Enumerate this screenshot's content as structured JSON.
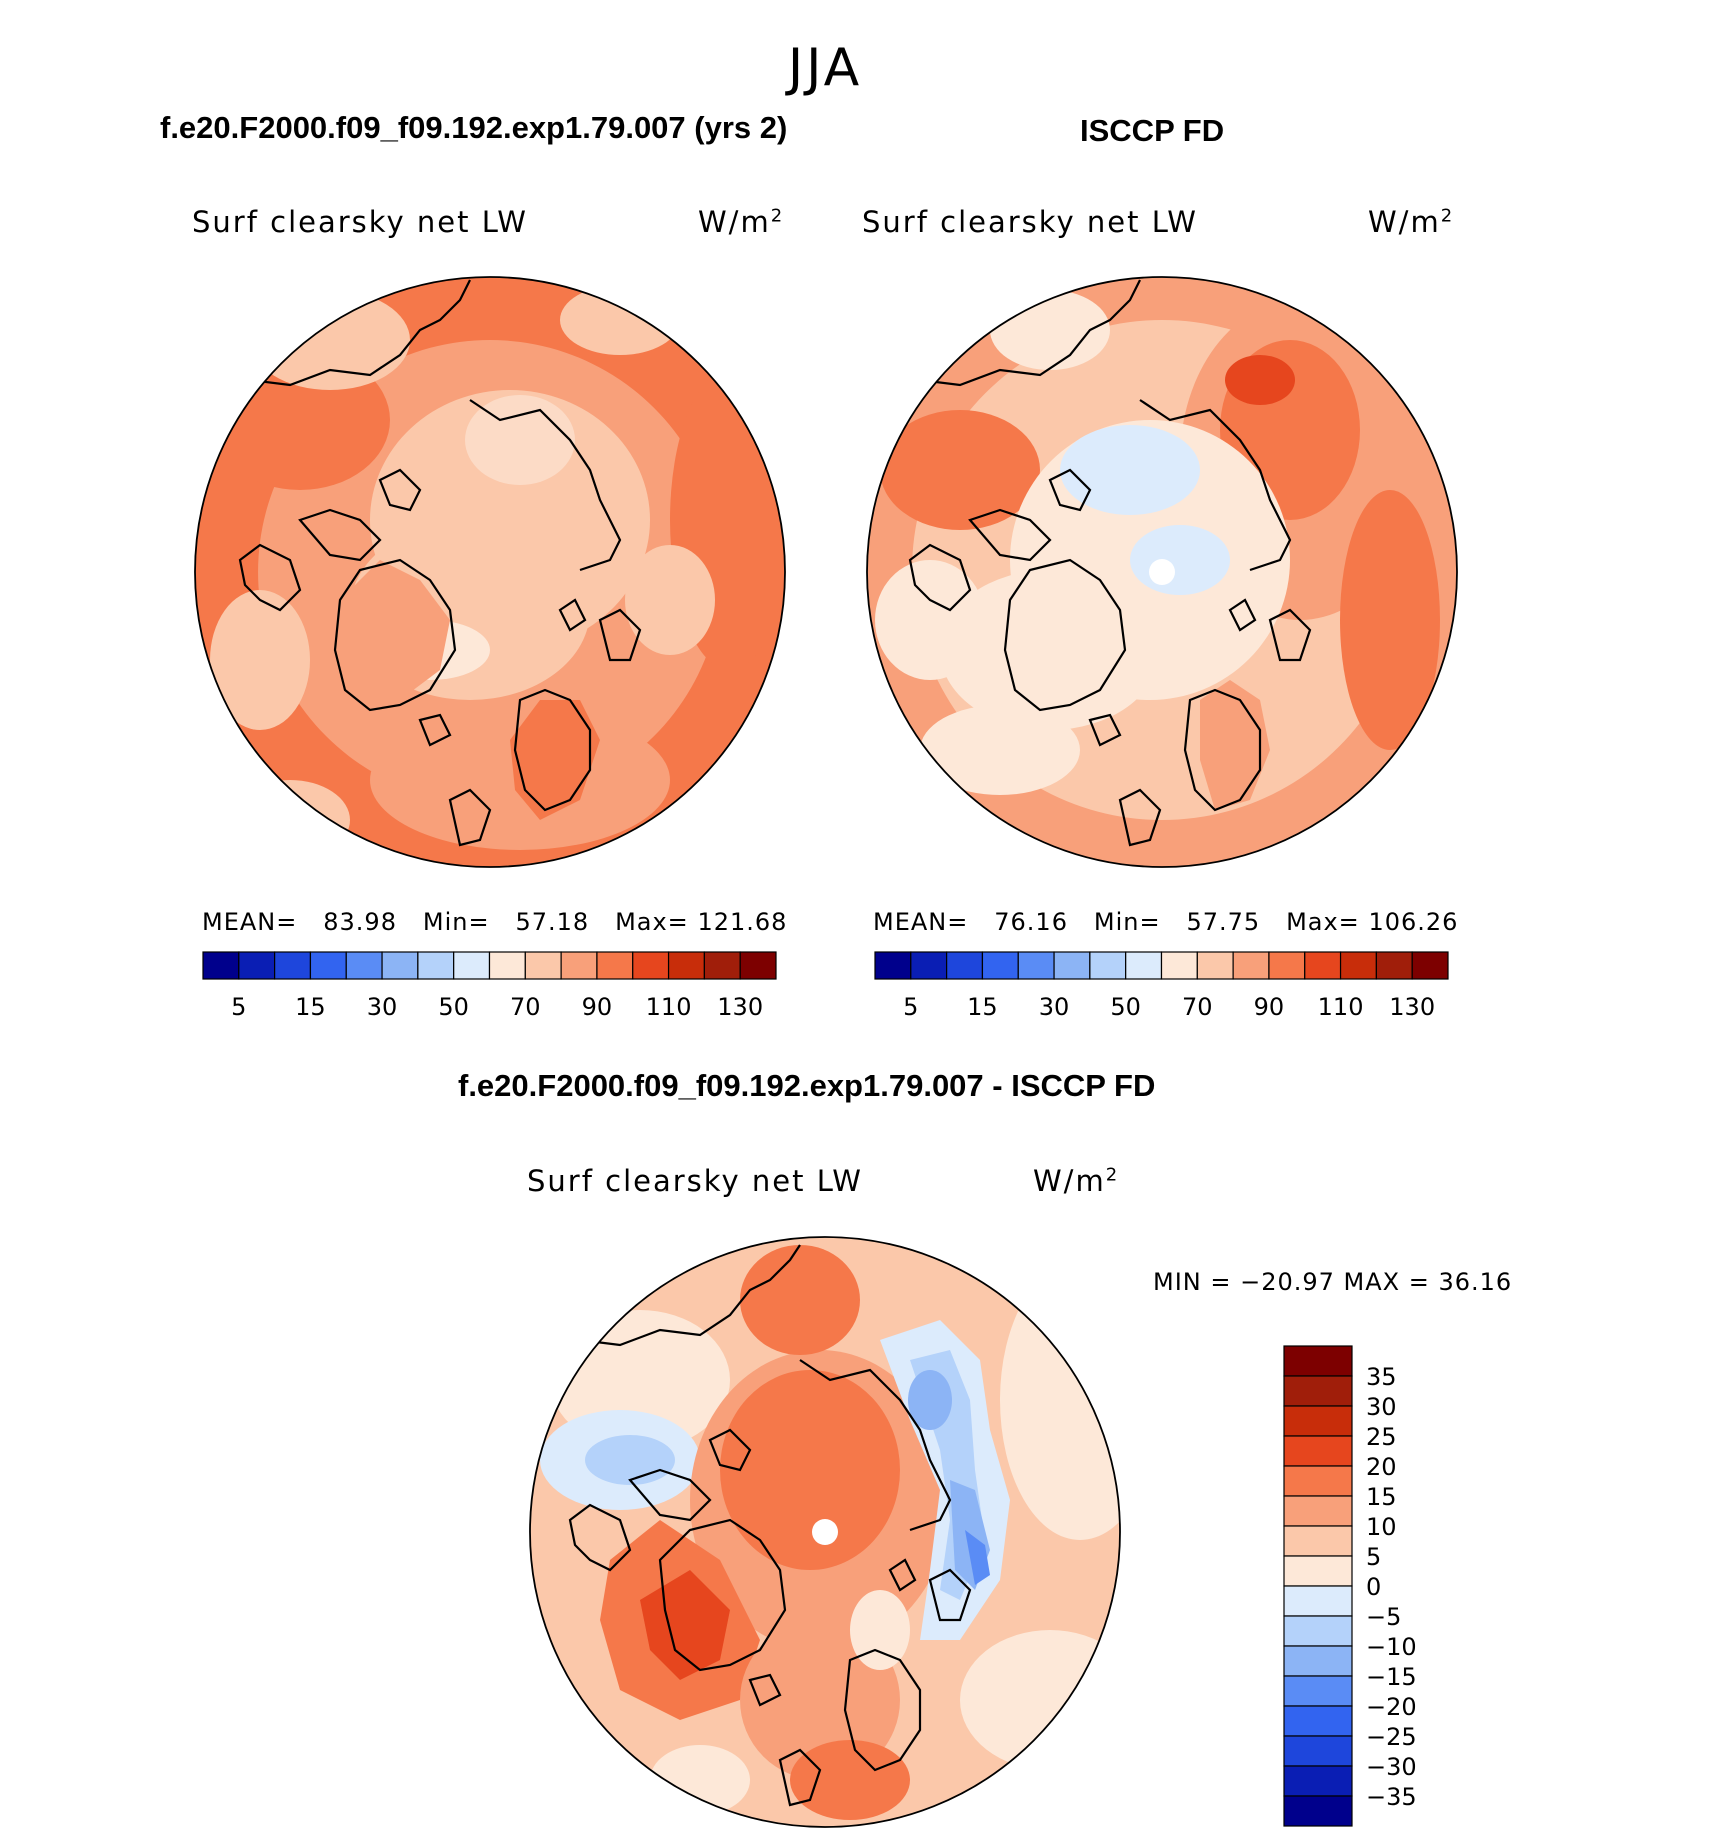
{
  "figure": {
    "title": "JJA"
  },
  "panels": [
    {
      "id": "model",
      "case_title": "f.e20.F2000.f09_f09.192.exp1.79.007 (yrs 2)",
      "variable": "Surf clearsky net LW",
      "units": "W/m",
      "units_sup": "2",
      "mean_label": "MEAN=",
      "mean": "83.98",
      "min_label": "Min=",
      "min": "57.18",
      "max_label": "Max=",
      "max": "121.68"
    },
    {
      "id": "obs",
      "case_title": "ISCCP FD",
      "variable": "Surf clearsky net LW",
      "units": "W/m",
      "units_sup": "2",
      "mean_label": "MEAN=",
      "mean": "76.16",
      "min_label": "Min=",
      "min": "57.75",
      "max_label": "Max=",
      "max": "106.26"
    }
  ],
  "diff": {
    "case_title": "f.e20.F2000.f09_f09.192.exp1.79.007 - ISCCP FD",
    "variable": "Surf clearsky net LW",
    "units": "W/m",
    "units_sup": "2",
    "minmax_text": "MIN = −20.97 MAX =   36.16"
  },
  "chart_data": [
    {
      "type": "heatmap",
      "projection": "north-polar-stereographic",
      "title": "Surf clearsky net LW",
      "units": "W/m2",
      "stats": {
        "mean": 83.98,
        "min": 57.18,
        "max": 121.68
      },
      "colorbar": {
        "orientation": "horizontal",
        "levels": [
          5,
          10,
          15,
          20,
          30,
          40,
          50,
          60,
          70,
          80,
          90,
          100,
          110,
          120,
          130
        ],
        "tick_labels": [
          "5",
          "15",
          "30",
          "50",
          "70",
          "90",
          "110",
          "130"
        ],
        "colors": [
          "#00008c",
          "#0a1eb4",
          "#1e46dc",
          "#3264f0",
          "#5a8cf5",
          "#8cb4f5",
          "#b4d2fa",
          "#dcebfc",
          "#fde8d8",
          "#fbc8aa",
          "#f8a07a",
          "#f5784a",
          "#e6461e",
          "#c82d0a",
          "#a01e0a",
          "#7d0000"
        ]
      },
      "dominant_range": [
        70,
        110
      ]
    },
    {
      "type": "heatmap",
      "projection": "north-polar-stereographic",
      "title": "Surf clearsky net LW",
      "units": "W/m2",
      "stats": {
        "mean": 76.16,
        "min": 57.75,
        "max": 106.26
      },
      "colorbar": {
        "orientation": "horizontal",
        "levels": [
          5,
          10,
          15,
          20,
          30,
          40,
          50,
          60,
          70,
          80,
          90,
          100,
          110,
          120,
          130
        ],
        "tick_labels": [
          "5",
          "15",
          "30",
          "50",
          "70",
          "90",
          "110",
          "130"
        ],
        "colors": [
          "#00008c",
          "#0a1eb4",
          "#1e46dc",
          "#3264f0",
          "#5a8cf5",
          "#8cb4f5",
          "#b4d2fa",
          "#dcebfc",
          "#fde8d8",
          "#fbc8aa",
          "#f8a07a",
          "#f5784a",
          "#e6461e",
          "#c82d0a",
          "#a01e0a",
          "#7d0000"
        ]
      },
      "dominant_range": [
        60,
        100
      ]
    },
    {
      "type": "heatmap",
      "projection": "north-polar-stereographic",
      "title": "Surf clearsky net LW",
      "units": "W/m2",
      "stats": {
        "min": -20.97,
        "max": 36.16
      },
      "colorbar": {
        "orientation": "vertical",
        "levels": [
          -35,
          -30,
          -25,
          -20,
          -15,
          -10,
          -5,
          0,
          5,
          10,
          15,
          20,
          25,
          30,
          35
        ],
        "tick_labels": [
          "35",
          "30",
          "25",
          "20",
          "15",
          "10",
          "5",
          "0",
          "−5",
          "−10",
          "−15",
          "−20",
          "−25",
          "−30",
          "−35"
        ],
        "colors_top_to_bottom": [
          "#7d0000",
          "#a01e0a",
          "#c82d0a",
          "#e6461e",
          "#f5784a",
          "#f8a07a",
          "#fbc8aa",
          "#fde8d8",
          "#dcebfc",
          "#b4d2fa",
          "#8cb4f5",
          "#5a8cf5",
          "#3264f0",
          "#1e46dc",
          "#0a1eb4",
          "#00008c"
        ]
      },
      "dominant_range": [
        0,
        20
      ]
    }
  ]
}
